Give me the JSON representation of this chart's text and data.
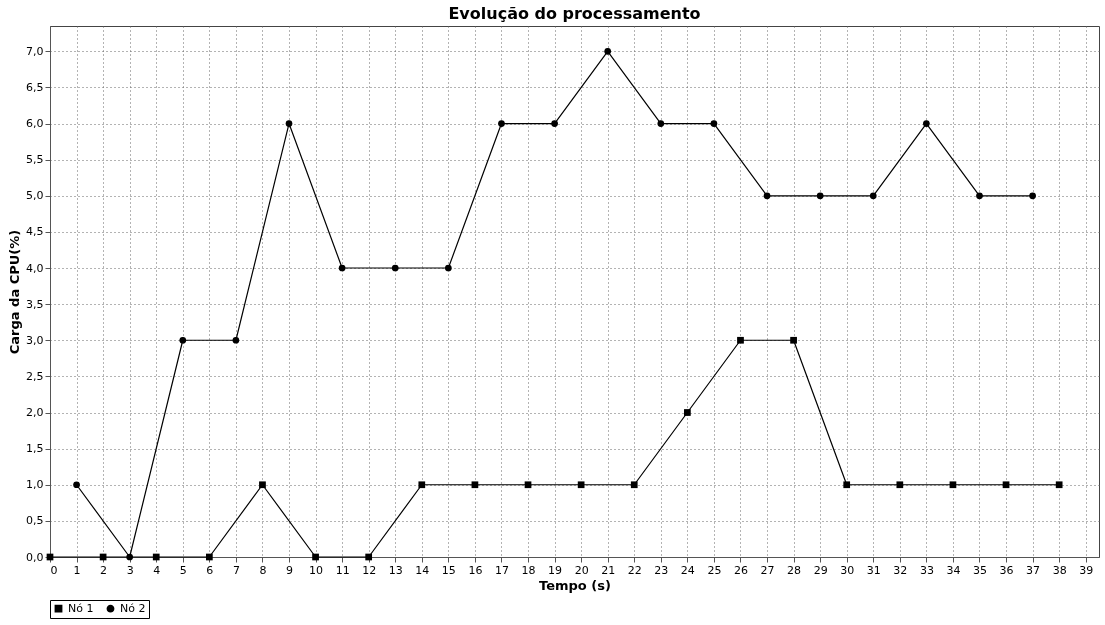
{
  "chart_data": {
    "type": "line",
    "title": "Evolução do processamento",
    "xlabel": "Tempo (s)",
    "ylabel": "Carga da CPU(%)",
    "xlim": [
      0,
      39.5
    ],
    "xticks": [
      0,
      1,
      2,
      3,
      4,
      5,
      6,
      7,
      8,
      9,
      10,
      11,
      12,
      13,
      14,
      15,
      16,
      17,
      18,
      19,
      20,
      21,
      22,
      23,
      24,
      25,
      26,
      27,
      28,
      29,
      30,
      31,
      32,
      33,
      34,
      35,
      36,
      37,
      38,
      39
    ],
    "ylim": [
      0,
      7.35
    ],
    "yticks": [
      {
        "value": 0,
        "label": "0,0"
      },
      {
        "value": 0.5,
        "label": "0,5"
      },
      {
        "value": 1,
        "label": "1,0"
      },
      {
        "value": 1.5,
        "label": "1,5"
      },
      {
        "value": 2,
        "label": "2,0"
      },
      {
        "value": 2.5,
        "label": "2,5"
      },
      {
        "value": 3,
        "label": "3,0"
      },
      {
        "value": 3.5,
        "label": "3,5"
      },
      {
        "value": 4,
        "label": "4,0"
      },
      {
        "value": 4.5,
        "label": "4,5"
      },
      {
        "value": 5,
        "label": "5,0"
      },
      {
        "value": 5.5,
        "label": "5,5"
      },
      {
        "value": 6,
        "label": "6,0"
      },
      {
        "value": 6.5,
        "label": "6,5"
      },
      {
        "value": 7,
        "label": "7,0"
      }
    ],
    "grid": true,
    "legend": "bottom",
    "line_style": "solid",
    "series": [
      {
        "name": "Nó 1",
        "color": "#000000",
        "marker": "square",
        "x": [
          0,
          2,
          4,
          6,
          8,
          10,
          12,
          14,
          16,
          18,
          20,
          22,
          24,
          26,
          28,
          30,
          32,
          34,
          36,
          38
        ],
        "values": [
          0,
          0,
          0,
          0,
          1,
          0,
          0,
          1,
          1,
          1,
          1,
          1,
          2,
          3,
          3,
          1,
          1,
          1,
          1,
          1
        ]
      },
      {
        "name": "Nó 2",
        "color": "#000000",
        "marker": "circle",
        "x": [
          1,
          3,
          5,
          7,
          9,
          11,
          13,
          15,
          17,
          19,
          21,
          23,
          25,
          27,
          29,
          31,
          33,
          35,
          37
        ],
        "values": [
          1,
          0,
          3,
          3,
          6,
          4,
          4,
          4,
          6,
          6,
          7,
          6,
          6,
          5,
          5,
          5,
          6,
          5,
          5
        ]
      }
    ]
  }
}
